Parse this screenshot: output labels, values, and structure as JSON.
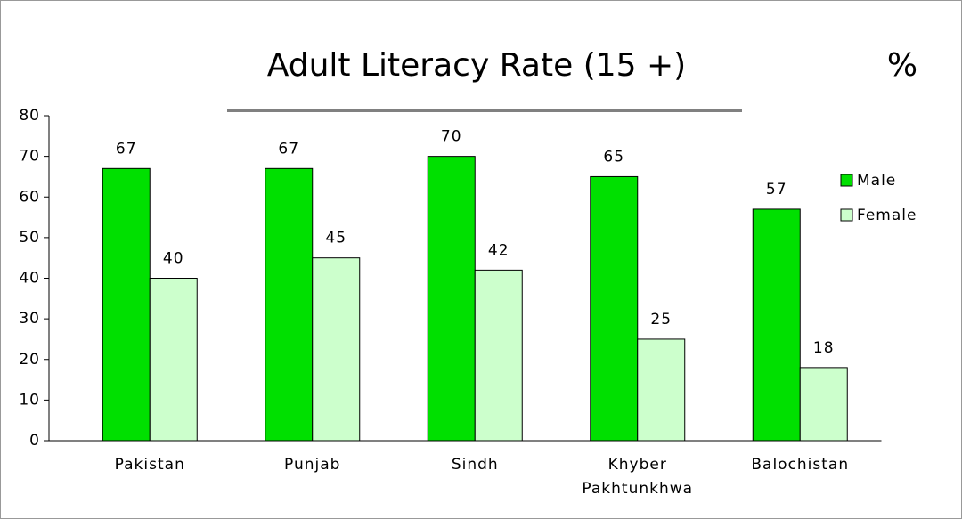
{
  "chart_data": {
    "type": "bar",
    "title": "Adult Literacy Rate (15 +)",
    "unit": "%",
    "categories": [
      "Pakistan",
      "Punjab",
      "Sindh",
      "Khyber Pakhtunkhwa",
      "Balochistan"
    ],
    "series": [
      {
        "name": "Male",
        "color": "#00e000",
        "values": [
          67,
          67,
          70,
          65,
          57
        ]
      },
      {
        "name": "Female",
        "color": "#ccffcc",
        "values": [
          40,
          45,
          42,
          25,
          18
        ]
      }
    ],
    "ylim": [
      0,
      80
    ],
    "yticks": [
      0,
      10,
      20,
      30,
      40,
      50,
      60,
      70,
      80
    ],
    "grid": false,
    "legend": "right"
  }
}
